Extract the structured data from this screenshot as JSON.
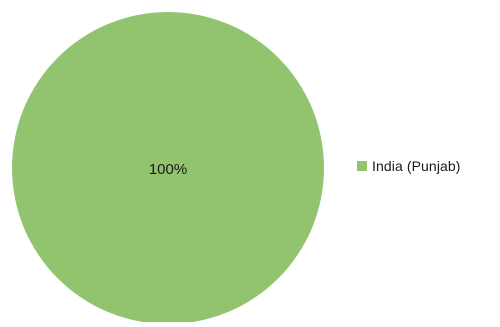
{
  "chart_data": {
    "type": "pie",
    "title": "",
    "slices": [
      {
        "label": "India (Punjab)",
        "value": 100,
        "color": "#92c36f"
      }
    ],
    "data_labels": [
      "100%"
    ],
    "legend_position": "right"
  }
}
